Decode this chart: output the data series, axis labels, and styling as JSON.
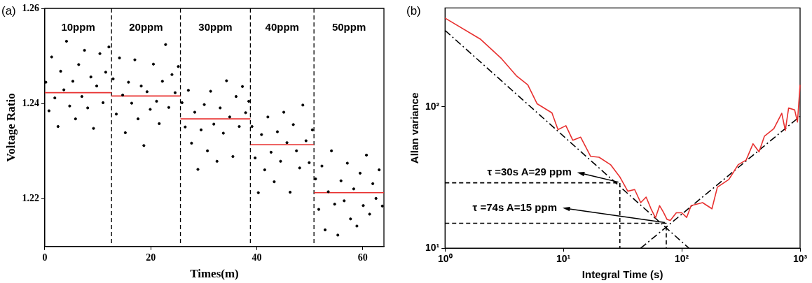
{
  "chart_data": [
    {
      "type": "scatter",
      "title": "(a)",
      "xlabel": "Times(m)",
      "ylabel": "Voltage Ratio",
      "xlim": [
        0,
        64
      ],
      "xticks": [
        0,
        20,
        40,
        60
      ],
      "ylim": [
        1.21,
        1.26
      ],
      "yticks": [
        1.22,
        1.24,
        1.26
      ],
      "annotations": [
        "10ppm",
        "20ppm",
        "30ppm",
        "40ppm",
        "50ppm"
      ],
      "ref_lines": [
        {
          "axis": "x",
          "value": 12.6,
          "line_style": "dashed",
          "color": "#000000"
        },
        {
          "axis": "x",
          "value": 25.6,
          "line_style": "dashed",
          "color": "#000000"
        },
        {
          "axis": "x",
          "value": 38.8,
          "line_style": "dashed",
          "color": "#000000"
        },
        {
          "axis": "x",
          "value": 50.8,
          "line_style": "dashed",
          "color": "#000000"
        }
      ],
      "series": [
        {
          "color": "#000000",
          "marker": "circle",
          "x": [
            0.2,
            0.8,
            1.3,
            1.9,
            2.5,
            3.0,
            3.6,
            4.1,
            4.7,
            5.3,
            5.8,
            6.4,
            7.0,
            7.5,
            8.1,
            8.7,
            9.2,
            9.8,
            10.4,
            11.0,
            11.5,
            12.1,
            12.9,
            13.5,
            14.1,
            14.7,
            15.2,
            15.8,
            16.4,
            17.0,
            17.6,
            18.2,
            18.7,
            19.3,
            19.9,
            20.5,
            21.1,
            21.6,
            22.2,
            22.8,
            23.4,
            24.0,
            24.6,
            25.2,
            25.9,
            26.5,
            27.1,
            27.7,
            28.3,
            28.9,
            29.5,
            30.1,
            30.7,
            31.3,
            31.9,
            32.5,
            33.1,
            33.7,
            34.3,
            34.9,
            35.5,
            36.1,
            36.7,
            37.3,
            37.9,
            38.5,
            39.1,
            39.7,
            40.3,
            40.9,
            41.5,
            42.1,
            42.7,
            43.3,
            43.9,
            44.5,
            45.1,
            45.7,
            46.3,
            46.9,
            47.5,
            48.1,
            48.7,
            49.3,
            49.9,
            50.5,
            51.1,
            51.7,
            52.3,
            52.9,
            53.5,
            54.1,
            54.7,
            55.3,
            55.9,
            56.5,
            57.1,
            57.7,
            58.3,
            58.9,
            59.5,
            60.1,
            60.7,
            61.3,
            61.9,
            62.5,
            63.1,
            63.7
          ],
          "values": [
            1.2445,
            1.2385,
            1.2498,
            1.2412,
            1.2352,
            1.2468,
            1.2429,
            1.2531,
            1.2395,
            1.2447,
            1.2368,
            1.2482,
            1.2415,
            1.2512,
            1.2391,
            1.2456,
            1.2348,
            1.2437,
            1.2505,
            1.2402,
            1.2466,
            1.2519,
            1.2452,
            1.2378,
            1.2496,
            1.2418,
            1.2339,
            1.2445,
            1.2401,
            1.2492,
            1.2368,
            1.2437,
            1.2312,
            1.2425,
            1.2388,
            1.2483,
            1.2405,
            1.2358,
            1.2447,
            1.2524,
            1.2392,
            1.2461,
            1.2423,
            1.2478,
            1.2402,
            1.2351,
            1.2428,
            1.2317,
            1.2382,
            1.2262,
            1.2345,
            1.2398,
            1.2301,
            1.2426,
            1.2357,
            1.2279,
            1.2391,
            1.2338,
            1.2448,
            1.2372,
            1.2289,
            1.2415,
            1.2352,
            1.2436,
            1.2381,
            1.2405,
            1.2352,
            1.2286,
            1.2213,
            1.2335,
            1.2261,
            1.2372,
            1.2298,
            1.2236,
            1.2341,
            1.2279,
            1.2382,
            1.2318,
            1.2214,
            1.2356,
            1.2301,
            1.2265,
            1.2397,
            1.2322,
            1.2276,
            1.2345,
            1.2242,
            1.2178,
            1.2269,
            1.2135,
            1.2215,
            1.2301,
            1.2189,
            1.2124,
            1.2238,
            1.2196,
            1.2275,
            1.2158,
            1.2221,
            1.2143,
            1.2254,
            1.2186,
            1.2292,
            1.2168,
            1.2232,
            1.2201,
            1.2261,
            1.2185
          ]
        },
        {
          "type": "line",
          "color": "#e8302f",
          "x": [
            0,
            12.6
          ],
          "values": [
            1.2423,
            1.2423
          ]
        },
        {
          "type": "line",
          "color": "#e8302f",
          "x": [
            12.6,
            25.6
          ],
          "values": [
            1.2416,
            1.2416
          ]
        },
        {
          "type": "line",
          "color": "#e8302f",
          "x": [
            25.6,
            38.8
          ],
          "values": [
            1.2368,
            1.2368
          ]
        },
        {
          "type": "line",
          "color": "#e8302f",
          "x": [
            38.8,
            50.8
          ],
          "values": [
            1.2314,
            1.2314
          ]
        },
        {
          "type": "line",
          "color": "#e8302f",
          "x": [
            50.8,
            64
          ],
          "values": [
            1.2213,
            1.2213
          ]
        }
      ]
    },
    {
      "type": "line",
      "title": "(b)",
      "xlabel": "Integral Time (s)",
      "ylabel": "Allan variance",
      "log": "xy",
      "xlim": [
        1,
        1000
      ],
      "xticks": [
        {
          "value": 1,
          "label": "10⁰"
        },
        {
          "value": 10,
          "label": "10¹"
        },
        {
          "value": 100,
          "label": "10²"
        },
        {
          "value": 1000,
          "label": "10³"
        }
      ],
      "ylim": [
        10,
        500
      ],
      "yticks": [
        {
          "value": 10,
          "label": "10¹"
        },
        {
          "value": 100,
          "label": "10²"
        }
      ],
      "annotations": [
        {
          "text": "τ =30s A=29 ppm",
          "x": 30,
          "y": 29
        },
        {
          "text": "τ =74s A=15 ppm",
          "x": 74,
          "y": 15
        }
      ],
      "series": [
        {
          "color": "#e8302f",
          "x": [
            1,
            2,
            3,
            4,
            5,
            6,
            8,
            9,
            10.5,
            12,
            14,
            17,
            20,
            25,
            30,
            35,
            40,
            45,
            50,
            55,
            60,
            65,
            70,
            75,
            80,
            90,
            100,
            110,
            120,
            150,
            180,
            200,
            250,
            300,
            350,
            400,
            450,
            500,
            600,
            700,
            750,
            800,
            900,
            950,
            1000
          ],
          "values": [
            424,
            300,
            219,
            166,
            143,
            105,
            90.6,
            69,
            73.5,
            58,
            61,
            44.6,
            44,
            39,
            31.9,
            25.3,
            26,
            21,
            23,
            19,
            16.4,
            20,
            18,
            16,
            15.7,
            17.8,
            17.8,
            16.5,
            20,
            21,
            19,
            27,
            30.6,
            39,
            42,
            54.8,
            48,
            62,
            70,
            90,
            68,
            98,
            95,
            78,
            143
          ]
        },
        {
          "type": "line",
          "color": "#000000",
          "line_style": "dashdot",
          "x": [
            1,
            115
          ],
          "values": [
            347,
            10
          ]
        },
        {
          "type": "line",
          "color": "#000000",
          "line_style": "dashdot",
          "x": [
            45,
            1000
          ],
          "values": [
            10,
            85.7
          ]
        },
        {
          "type": "line",
          "color": "#000000",
          "line_style": "dashed",
          "x": [
            1,
            30,
            30
          ],
          "values": [
            29,
            29,
            10
          ]
        },
        {
          "type": "line",
          "color": "#000000",
          "line_style": "dashed",
          "x": [
            1,
            74,
            74
          ],
          "values": [
            15,
            15,
            10
          ]
        }
      ]
    }
  ]
}
